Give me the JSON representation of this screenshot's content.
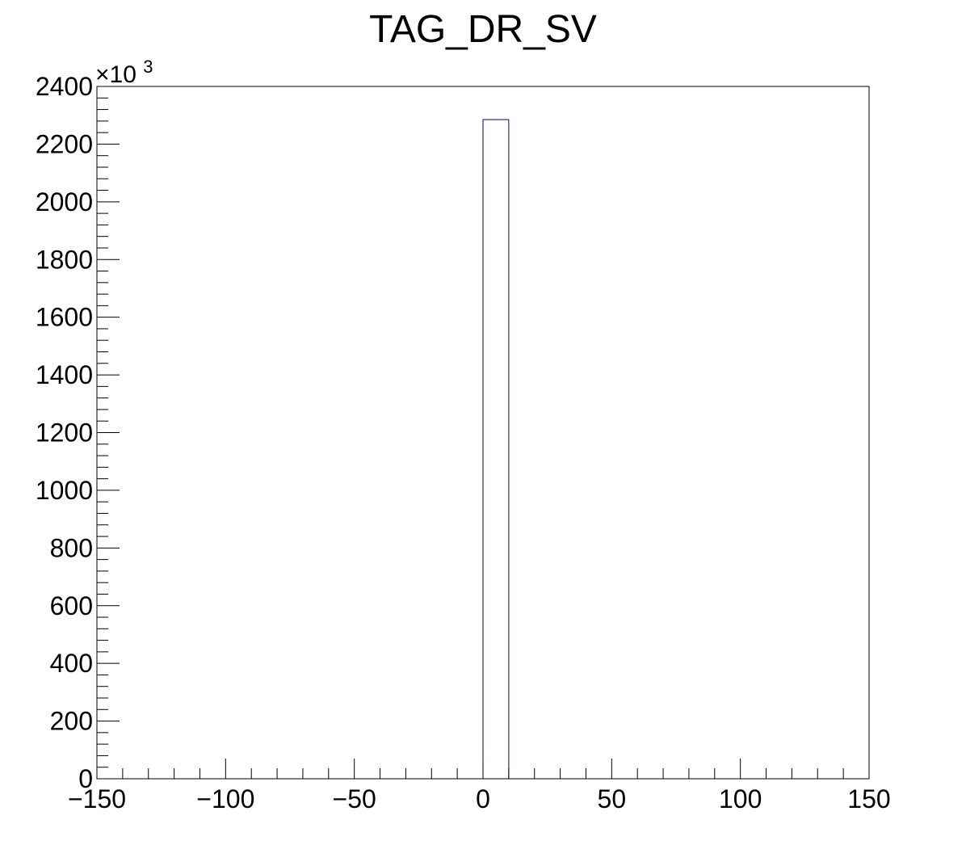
{
  "chart_data": {
    "type": "bar",
    "title": "TAG_DR_SV",
    "xlabel": "",
    "ylabel": "",
    "xlim": [
      -150,
      150
    ],
    "ylim": [
      0,
      2400
    ],
    "y_multiplier": {
      "base": "×10",
      "exponent": "3"
    },
    "x_ticks": [
      {
        "value": -150,
        "label": "−150"
      },
      {
        "value": -100,
        "label": "−100"
      },
      {
        "value": -50,
        "label": "−50"
      },
      {
        "value": 0,
        "label": "0"
      },
      {
        "value": 50,
        "label": "50"
      },
      {
        "value": 100,
        "label": "100"
      },
      {
        "value": 150,
        "label": "150"
      }
    ],
    "x_minor_step": 10,
    "y_ticks": [
      {
        "value": 0,
        "label": "0"
      },
      {
        "value": 200,
        "label": "200"
      },
      {
        "value": 400,
        "label": "400"
      },
      {
        "value": 600,
        "label": "600"
      },
      {
        "value": 800,
        "label": "800"
      },
      {
        "value": 1000,
        "label": "1000"
      },
      {
        "value": 1200,
        "label": "1200"
      },
      {
        "value": 1400,
        "label": "1400"
      },
      {
        "value": 1600,
        "label": "1600"
      },
      {
        "value": 1800,
        "label": "1800"
      },
      {
        "value": 2000,
        "label": "2000"
      },
      {
        "value": 2200,
        "label": "2200"
      },
      {
        "value": 2400,
        "label": "2400"
      }
    ],
    "y_minor_step": 40,
    "bins": [
      {
        "x_low": 0,
        "x_high": 10,
        "value": 2285
      }
    ],
    "line_color": "#000080",
    "frame_color": "#000000",
    "grid": false,
    "legend": "none"
  }
}
